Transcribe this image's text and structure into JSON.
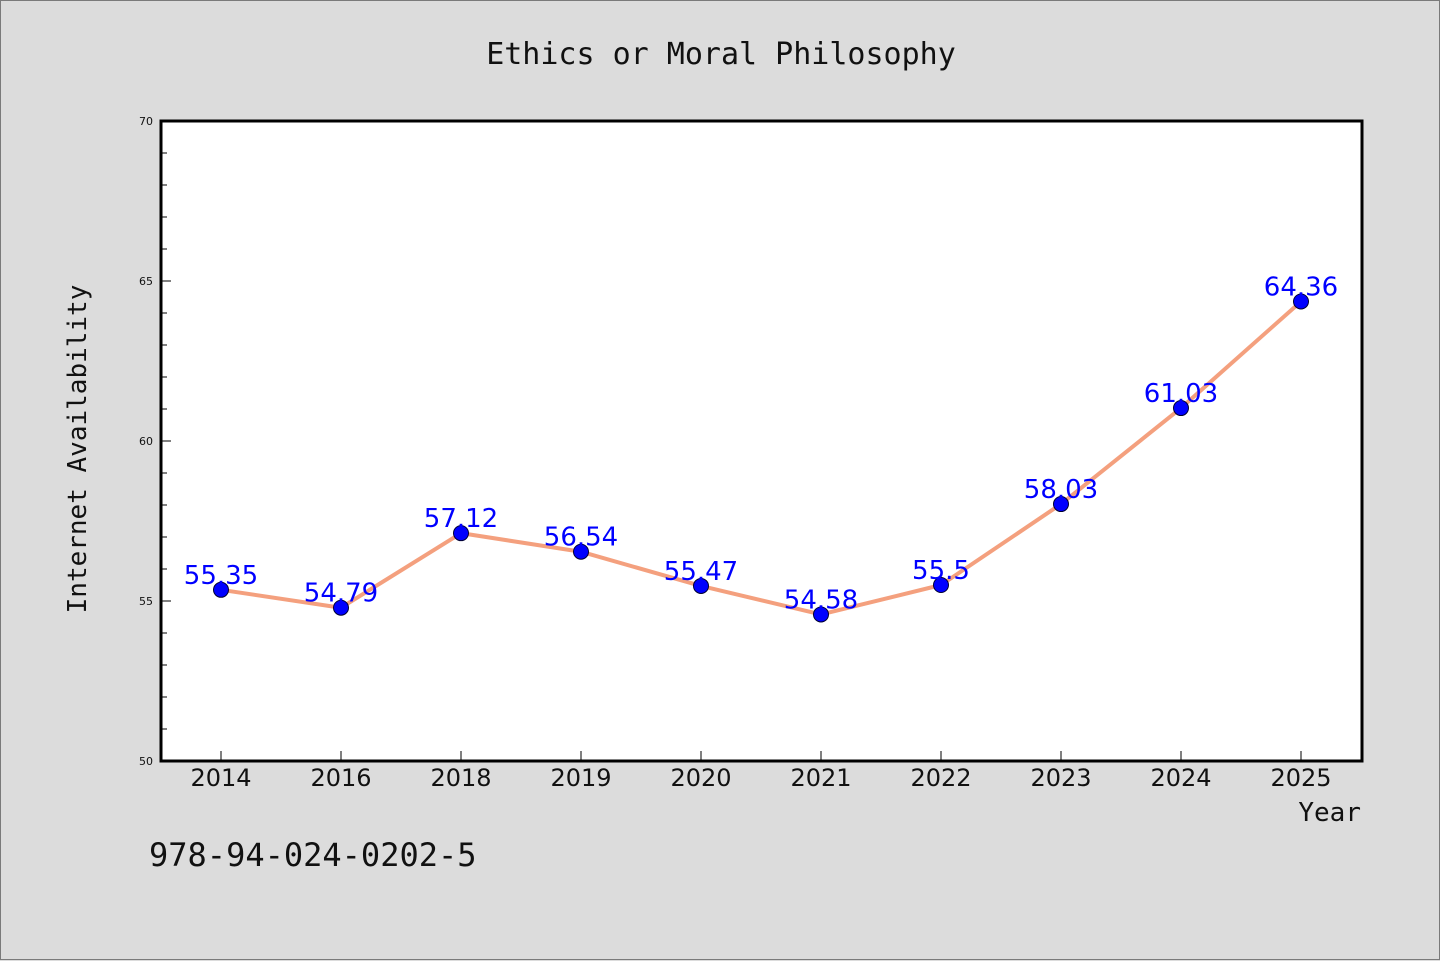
{
  "footer_text": "978-94-024-0202-5",
  "colors": {
    "background": "#dcdcdc",
    "plot_background": "#ffffff",
    "line": "#f4a07e",
    "marker": "#0000ff",
    "data_label": "#0000ff"
  },
  "chart_data": {
    "type": "line",
    "title": "Ethics or Moral Philosophy",
    "xlabel": "Year",
    "ylabel": "Internet Availability",
    "categories": [
      "2014",
      "2016",
      "2018",
      "2019",
      "2020",
      "2021",
      "2022",
      "2023",
      "2024",
      "2025"
    ],
    "values": [
      55.35,
      54.79,
      57.12,
      56.54,
      55.47,
      54.58,
      55.5,
      58.03,
      61.03,
      64.36
    ],
    "data_labels": [
      "55.35",
      "54.79",
      "57.12",
      "56.54",
      "55.47",
      "54.58",
      "55.5",
      "58.03",
      "61.03",
      "64.36"
    ],
    "ylim": [
      50,
      70
    ],
    "yticks": [
      "50",
      "55",
      "60",
      "65",
      "70"
    ],
    "grid": false,
    "legend": "none"
  }
}
